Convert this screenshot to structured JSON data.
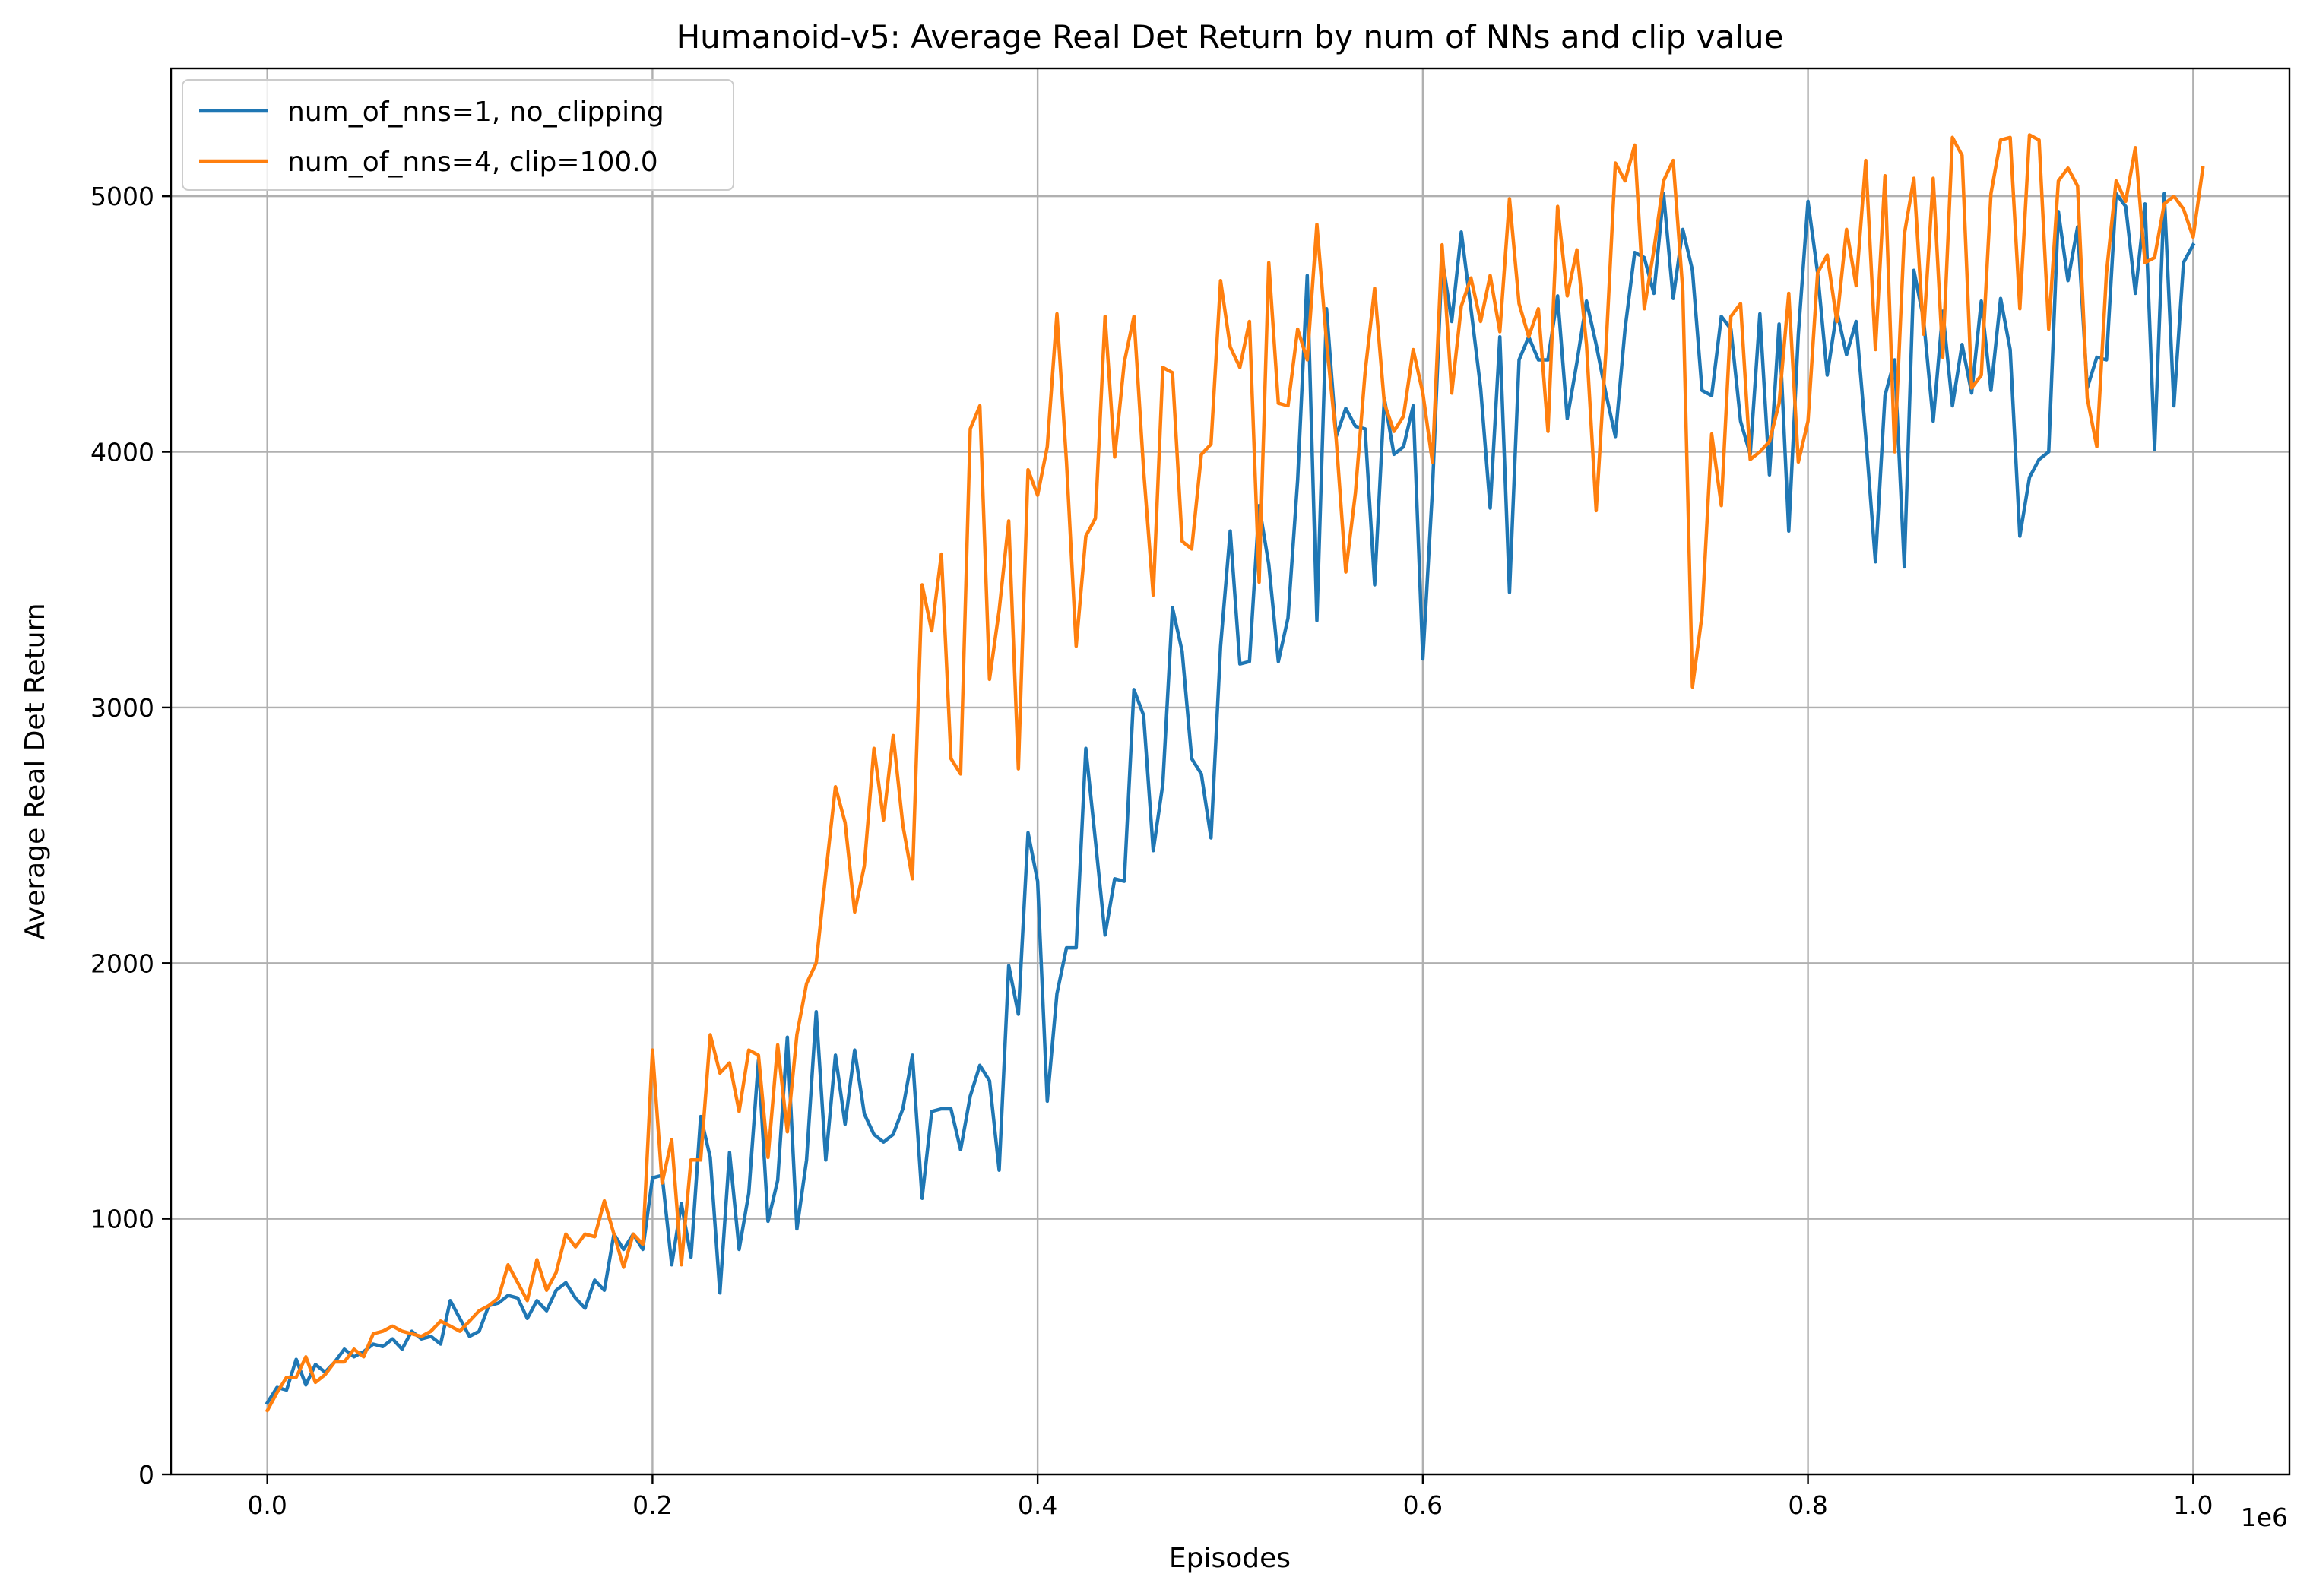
{
  "chart_data": {
    "type": "line",
    "title": "Humanoid-v5: Average Real Det Return by num of NNs and clip value",
    "xlabel": "Episodes",
    "ylabel": "Average Real Det Return",
    "x_offset_label": "1e6",
    "xlim": [
      -0.05,
      1.05
    ],
    "ylim": [
      0,
      5500
    ],
    "xticks": [
      0.0,
      0.2,
      0.4,
      0.6,
      0.8,
      1.0
    ],
    "xtick_labels": [
      "0.0",
      "0.2",
      "0.4",
      "0.6",
      "0.8",
      "1.0"
    ],
    "yticks": [
      0,
      1000,
      2000,
      3000,
      4000,
      5000
    ],
    "ytick_labels": [
      "0",
      "1000",
      "2000",
      "3000",
      "4000",
      "5000"
    ],
    "grid": true,
    "legend_position": "top-left",
    "x_start": 0.0,
    "x_step": 0.005,
    "series": [
      {
        "name": "num_of_nns=1, no_clipping",
        "color": "#1f77b4",
        "values": [
          280,
          340,
          330,
          450,
          350,
          430,
          400,
          440,
          490,
          460,
          480,
          510,
          500,
          530,
          490,
          560,
          530,
          540,
          510,
          680,
          610,
          540,
          560,
          660,
          670,
          700,
          690,
          610,
          680,
          640,
          720,
          750,
          690,
          650,
          760,
          720,
          940,
          880,
          940,
          880,
          1160,
          1170,
          820,
          1060,
          850,
          1400,
          1240,
          710,
          1260,
          880,
          1100,
          1620,
          990,
          1150,
          1710,
          960,
          1230,
          1810,
          1230,
          1640,
          1370,
          1660,
          1410,
          1330,
          1300,
          1330,
          1430,
          1640,
          1080,
          1420,
          1430,
          1430,
          1270,
          1480,
          1600,
          1540,
          1190,
          1990,
          1800,
          2510,
          2320,
          1460,
          1880,
          2060,
          2060,
          2840,
          2480,
          2110,
          2330,
          2320,
          3070,
          2970,
          2440,
          2700,
          3390,
          3220,
          2800,
          2740,
          2490,
          3240,
          3690,
          3170,
          3180,
          3790,
          3560,
          3180,
          3350,
          3890,
          4690,
          3340,
          4560,
          4060,
          4170,
          4100,
          4090,
          3480,
          4210,
          3990,
          4020,
          4180,
          3190,
          3850,
          4760,
          4510,
          4860,
          4560,
          4250,
          3780,
          4450,
          3450,
          4360,
          4450,
          4360,
          4360,
          4610,
          4130,
          4350,
          4590,
          4420,
          4230,
          4060,
          4480,
          4780,
          4760,
          4620,
          5010,
          4600,
          4870,
          4710,
          4240,
          4220,
          4530,
          4480,
          4120,
          3990,
          4540,
          3910,
          4500,
          3690,
          4460,
          4980,
          4700,
          4300,
          4550,
          4380,
          4510,
          4060,
          3570,
          4220,
          4360,
          3550,
          4710,
          4520,
          4120,
          4550,
          4180,
          4420,
          4230,
          4590,
          4240,
          4600,
          4400,
          3670,
          3900,
          3970,
          4000,
          4940,
          4670,
          4880,
          4250,
          4370,
          4360,
          5010,
          4960,
          4620,
          4970,
          4010,
          5010,
          4180,
          4740,
          4810
        ]
      },
      {
        "name": "num_of_nns=4, clip=100.0",
        "color": "#ff7f0e",
        "values": [
          250,
          320,
          380,
          380,
          460,
          360,
          390,
          440,
          440,
          490,
          460,
          550,
          560,
          580,
          560,
          550,
          540,
          560,
          600,
          580,
          560,
          600,
          640,
          660,
          690,
          820,
          750,
          680,
          840,
          720,
          790,
          940,
          890,
          940,
          930,
          1070,
          940,
          810,
          940,
          900,
          1660,
          1140,
          1310,
          820,
          1230,
          1230,
          1720,
          1570,
          1610,
          1420,
          1660,
          1640,
          1240,
          1680,
          1340,
          1720,
          1920,
          2000,
          2350,
          2690,
          2550,
          2200,
          2380,
          2840,
          2560,
          2890,
          2540,
          2330,
          3480,
          3300,
          3600,
          2800,
          2740,
          4090,
          4180,
          3110,
          3380,
          3730,
          2760,
          3930,
          3830,
          4020,
          4540,
          3960,
          3240,
          3670,
          3740,
          4530,
          3980,
          4350,
          4530,
          3930,
          3440,
          4330,
          4310,
          3650,
          3620,
          3990,
          4030,
          4670,
          4410,
          4330,
          4510,
          3490,
          4740,
          4190,
          4180,
          4480,
          4360,
          4890,
          4430,
          4050,
          3530,
          3840,
          4310,
          4640,
          4190,
          4080,
          4140,
          4400,
          4230,
          3960,
          4810,
          4230,
          4570,
          4680,
          4510,
          4690,
          4470,
          4990,
          4580,
          4450,
          4560,
          4080,
          4960,
          4610,
          4790,
          4420,
          3770,
          4390,
          5130,
          5060,
          5200,
          4560,
          4790,
          5060,
          5140,
          4630,
          3080,
          3360,
          4070,
          3790,
          4530,
          4580,
          3970,
          4000,
          4040,
          4190,
          4620,
          3960,
          4120,
          4700,
          4770,
          4510,
          4870,
          4650,
          5140,
          4400,
          5080,
          4000,
          4850,
          5070,
          4460,
          5070,
          4370,
          5230,
          5160,
          4250,
          4300,
          5010,
          5220,
          5230,
          4560,
          5240,
          5220,
          4480,
          5060,
          5110,
          5040,
          4210,
          4020,
          4700,
          5060,
          4980,
          5190,
          4740,
          4760,
          4970,
          5000,
          4950,
          4840,
          5110
        ]
      }
    ]
  }
}
